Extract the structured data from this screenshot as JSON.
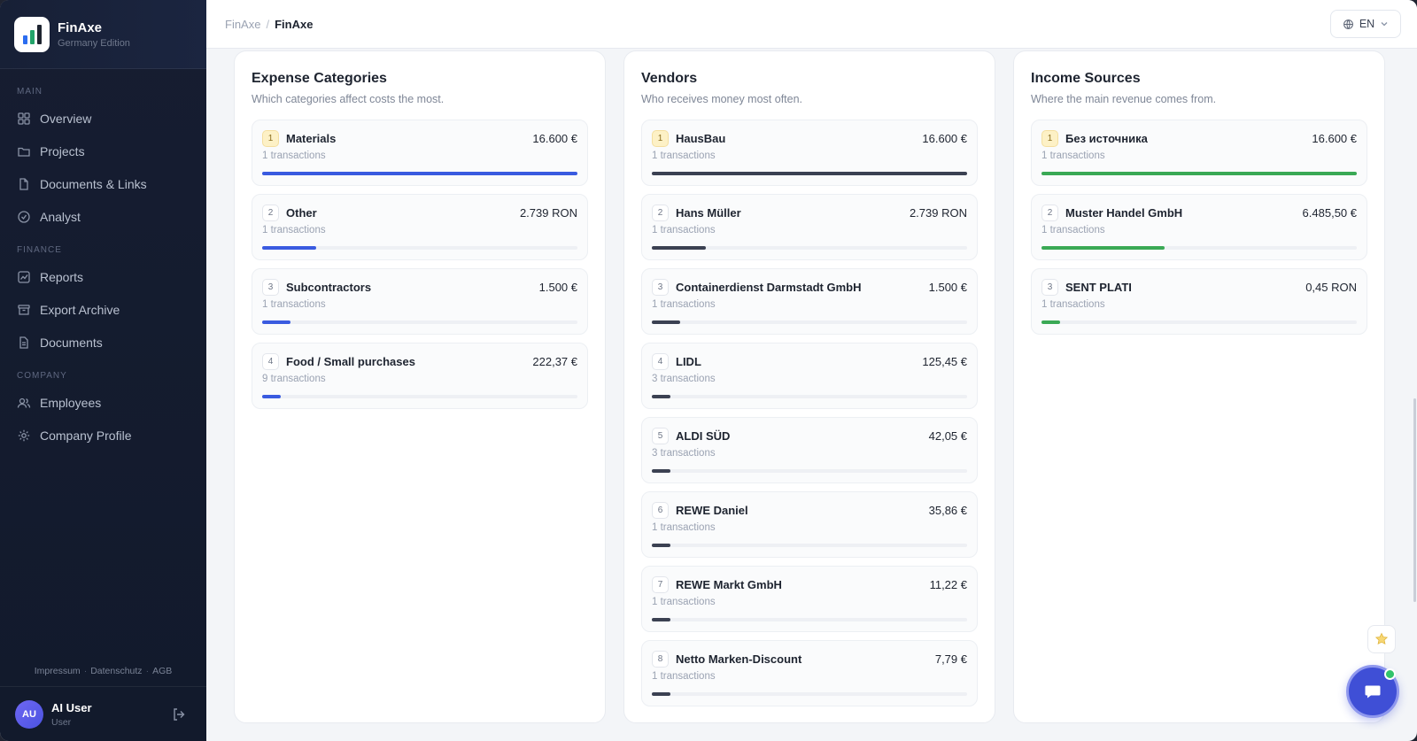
{
  "app": {
    "name": "FinAxe",
    "edition": "Germany Edition",
    "logo_colors": [
      "#2c6df0",
      "#22a46a",
      "#1e2430"
    ]
  },
  "sidebar": {
    "sections": [
      {
        "label": "MAIN",
        "items": [
          {
            "label": "Overview",
            "icon": "grid-icon"
          },
          {
            "label": "Projects",
            "icon": "folder-icon"
          },
          {
            "label": "Documents & Links",
            "icon": "file-icon"
          },
          {
            "label": "Analyst",
            "icon": "check-circle-icon"
          }
        ]
      },
      {
        "label": "FINANCE",
        "items": [
          {
            "label": "Reports",
            "icon": "chart-icon"
          },
          {
            "label": "Export Archive",
            "icon": "archive-icon"
          },
          {
            "label": "Documents",
            "icon": "file-text-icon"
          }
        ]
      },
      {
        "label": "COMPANY",
        "items": [
          {
            "label": "Employees",
            "icon": "users-icon"
          },
          {
            "label": "Company Profile",
            "icon": "gear-icon"
          }
        ]
      }
    ],
    "footer_links": [
      "Impressum",
      "Datenschutz",
      "AGB"
    ],
    "user": {
      "initials": "AU",
      "name": "AI User",
      "role": "User"
    }
  },
  "header": {
    "breadcrumb": [
      "FinAxe",
      "FinAxe"
    ],
    "language": "EN"
  },
  "cards": [
    {
      "title": "Expense Categories",
      "subtitle": "Which categories affect costs the most.",
      "bar_color": "#3a5be0",
      "items": [
        {
          "rank": "1",
          "name": "Materials",
          "amount": "16.600 €",
          "count": "1 transactions",
          "share": 1.0
        },
        {
          "rank": "2",
          "name": "Other",
          "amount": "2.739 RON",
          "count": "1 transactions",
          "share": 0.17
        },
        {
          "rank": "3",
          "name": "Subcontractors",
          "amount": "1.500 €",
          "count": "1 transactions",
          "share": 0.09
        },
        {
          "rank": "4",
          "name": "Food / Small purchases",
          "amount": "222,37 €",
          "count": "9 transactions",
          "share": 0.06
        }
      ]
    },
    {
      "title": "Vendors",
      "subtitle": "Who receives money most often.",
      "bar_color": "#3b4152",
      "items": [
        {
          "rank": "1",
          "name": "HausBau",
          "amount": "16.600 €",
          "count": "1 transactions",
          "share": 1.0
        },
        {
          "rank": "2",
          "name": "Hans Müller",
          "amount": "2.739 RON",
          "count": "1 transactions",
          "share": 0.17
        },
        {
          "rank": "3",
          "name": "Containerdienst Darmstadt GmbH",
          "amount": "1.500 €",
          "count": "1 transactions",
          "share": 0.09
        },
        {
          "rank": "4",
          "name": "LIDL",
          "amount": "125,45 €",
          "count": "3 transactions",
          "share": 0.06
        },
        {
          "rank": "5",
          "name": "ALDI SÜD",
          "amount": "42,05 €",
          "count": "3 transactions",
          "share": 0.06
        },
        {
          "rank": "6",
          "name": "REWE Daniel",
          "amount": "35,86 €",
          "count": "1 transactions",
          "share": 0.06
        },
        {
          "rank": "7",
          "name": "REWE Markt GmbH",
          "amount": "11,22 €",
          "count": "1 transactions",
          "share": 0.06
        },
        {
          "rank": "8",
          "name": "Netto Marken-Discount",
          "amount": "7,79 €",
          "count": "1 transactions",
          "share": 0.06
        }
      ]
    },
    {
      "title": "Income Sources",
      "subtitle": "Where the main revenue comes from.",
      "bar_color": "#3aa955",
      "items": [
        {
          "rank": "1",
          "name": "Без источника",
          "amount": "16.600 €",
          "count": "1 transactions",
          "share": 1.0
        },
        {
          "rank": "2",
          "name": "Muster Handel GmbH",
          "amount": "6.485,50 €",
          "count": "1 transactions",
          "share": 0.39
        },
        {
          "rank": "3",
          "name": "SENT PLATI",
          "amount": "0,45 RON",
          "count": "1 transactions",
          "share": 0.06
        }
      ]
    }
  ]
}
